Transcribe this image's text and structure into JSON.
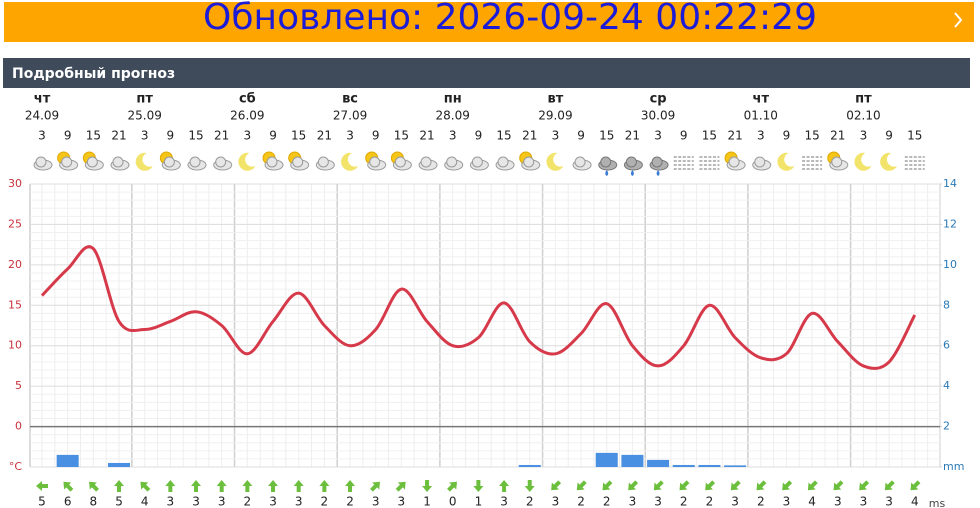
{
  "banner": {
    "text": "Обновлено: 2026-09-24 00:22:29"
  },
  "section": {
    "title": "Подробный прогноз"
  },
  "chart_data": {
    "type": "line",
    "days": [
      {
        "name": "чт",
        "date": "24.09"
      },
      {
        "name": "пт",
        "date": "25.09"
      },
      {
        "name": "сб",
        "date": "26.09"
      },
      {
        "name": "вс",
        "date": "27.09"
      },
      {
        "name": "пн",
        "date": "28.09"
      },
      {
        "name": "вт",
        "date": "29.09"
      },
      {
        "name": "ср",
        "date": "30.09"
      },
      {
        "name": "чт",
        "date": "01.10"
      },
      {
        "name": "пт",
        "date": "02.10"
      }
    ],
    "categories": [
      3,
      9,
      15,
      21,
      3,
      9,
      15,
      21,
      3,
      9,
      15,
      21,
      3,
      9,
      15,
      21,
      3,
      9,
      15,
      21,
      3,
      9,
      15,
      21,
      3,
      9,
      15,
      21,
      3,
      9,
      15,
      21,
      3,
      9,
      15
    ],
    "ylim": [
      -5,
      30
    ],
    "yticks": [
      {
        "value": -5,
        "label": "°C"
      },
      0,
      5,
      10,
      15,
      20,
      25,
      30
    ],
    "y2lim": [
      0,
      14
    ],
    "y2ticks": [
      {
        "value": 0,
        "label": "mm"
      },
      2,
      4,
      6,
      8,
      10,
      12,
      14
    ],
    "grid": true,
    "series": [
      {
        "name": "temperature",
        "color": "#d63a4a",
        "values": [
          16.2,
          19.5,
          22,
          13,
          12,
          13,
          14.2,
          12.5,
          9,
          13,
          16.5,
          12.5,
          10,
          12,
          17,
          13,
          10,
          11,
          15.3,
          10.5,
          9,
          11.5,
          15.2,
          10,
          7.5,
          10,
          15,
          11,
          8.5,
          9,
          14,
          10.5,
          7.5,
          8,
          13.8
        ]
      },
      {
        "name": "precipitation",
        "color": "#4a90e2",
        "axis": "y2",
        "values": [
          0,
          0.6,
          0,
          0.2,
          0,
          0,
          0,
          0,
          0,
          0,
          0,
          0,
          0,
          0,
          0,
          0,
          0,
          0,
          0,
          0.1,
          0,
          0,
          0.7,
          0.6,
          0.35,
          0.1,
          0.1,
          0.08,
          0,
          0,
          0,
          0,
          0,
          0,
          0
        ]
      }
    ],
    "wind": {
      "unit": "ms",
      "color": "#6cbf3c",
      "values": [
        5,
        6,
        8,
        5,
        4,
        3,
        3,
        3,
        2,
        3,
        3,
        2,
        2,
        3,
        3,
        1,
        0,
        1,
        3,
        2,
        3,
        2,
        2,
        3,
        3,
        2,
        2,
        3,
        2,
        3,
        4,
        3,
        3,
        3,
        4
      ],
      "direction": [
        270,
        315,
        315,
        0,
        315,
        0,
        0,
        0,
        0,
        0,
        0,
        0,
        0,
        45,
        45,
        180,
        45,
        180,
        0,
        180,
        225,
        225,
        225,
        225,
        225,
        225,
        225,
        225,
        225,
        225,
        225,
        225,
        225,
        225,
        225
      ]
    }
  }
}
